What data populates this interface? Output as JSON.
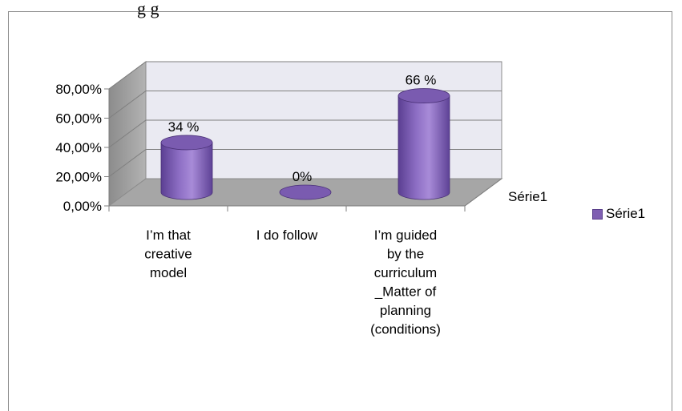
{
  "chart_data": {
    "type": "bar",
    "style": "3d-cylinder",
    "title_fragment": "g   g",
    "categories": [
      "I’m that creative model",
      "I do follow",
      "I’m guided by the curriculum _Matter of planning (conditions)"
    ],
    "category_lines": [
      [
        "I’m that",
        "creative",
        "model"
      ],
      [
        "I do follow"
      ],
      [
        "I’m guided",
        "by the",
        "curriculum",
        "_Matter of",
        "planning",
        "(conditions)"
      ]
    ],
    "series": [
      {
        "name": "Série1",
        "values": [
          0.34,
          0.0,
          0.66
        ],
        "color": "#7f5fb2"
      }
    ],
    "data_labels": [
      "34 %",
      "0%",
      "66 %"
    ],
    "y_ticks": [
      "0,00%",
      "20,00%",
      "40,00%",
      "60,00%",
      "80,00%"
    ],
    "ylim": [
      0,
      0.8
    ],
    "depth_axis_label": "Série1",
    "legend": {
      "label": "Série1",
      "position": "right"
    },
    "grid": true
  }
}
